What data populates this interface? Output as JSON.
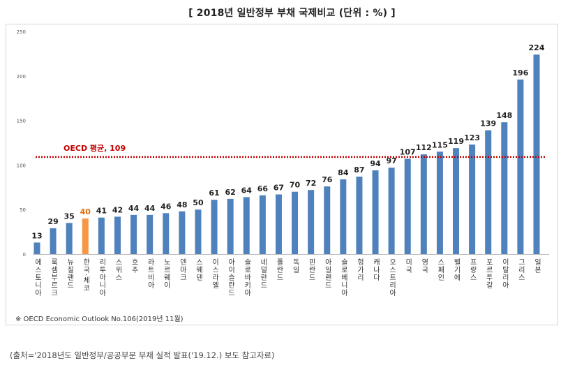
{
  "title": "[ 2018년 일반정부 부채 국제비교 (단위 : %) ]",
  "note": "※ OECD Economic Outlook No.106(2019년 11월)",
  "source": "(출처='2018년도 일반정부/공공부문 부채 실적 발표('19.12.) 보도 참고자료)",
  "colors": {
    "bar": "#4f81bd",
    "highlight": "#f79646",
    "oecd_line": "#c00000",
    "highlight_label": "#e36c09"
  },
  "chart_data": {
    "type": "bar",
    "title": "[ 2018년 일반정부 부채 국제비교 (단위 : %) ]",
    "xlabel": "",
    "ylabel": "",
    "ylim": [
      0,
      250
    ],
    "yticks": [
      0,
      50,
      100,
      150,
      200,
      250
    ],
    "categories": [
      "에스토니아",
      "룩셈부르크",
      "뉴질랜드",
      "한국·체코",
      "리투아니아",
      "스위스",
      "호주",
      "라트비아",
      "노르웨이",
      "덴마크",
      "스웨덴",
      "이스라엘",
      "아이슬란드",
      "슬로바키아",
      "네덜란드",
      "폴란드",
      "독일",
      "핀란드",
      "아일랜드",
      "슬로베니아",
      "헝가리",
      "캐나다",
      "오스트리아",
      "미국",
      "영국",
      "스페인",
      "벨기에",
      "프랑스",
      "포르투갈",
      "이탈리아",
      "그리스",
      "일본"
    ],
    "values": [
      13,
      29,
      35,
      40,
      41,
      42,
      44,
      44,
      46,
      48,
      50,
      61,
      62,
      64,
      66,
      67,
      70,
      72,
      76,
      84,
      87,
      94,
      97,
      107,
      112,
      115,
      119,
      123,
      139,
      148,
      196,
      224
    ],
    "highlight_index": 3,
    "reference_line": {
      "label": "OECD 평균, 109",
      "value": 109
    }
  }
}
